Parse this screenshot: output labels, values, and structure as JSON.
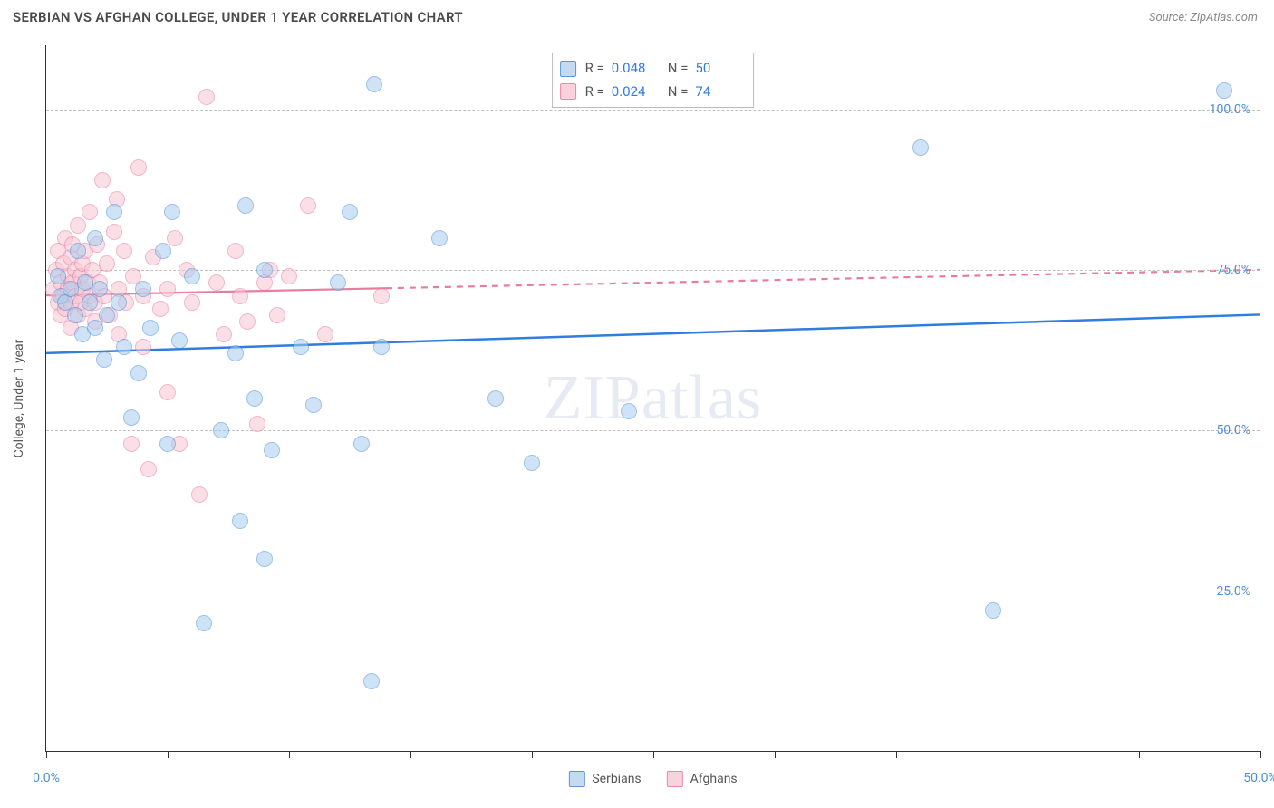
{
  "title": "SERBIAN VS AFGHAN COLLEGE, UNDER 1 YEAR CORRELATION CHART",
  "source_label": "Source: ZipAtlas.com",
  "watermark": "ZIPatlas",
  "y_axis_label": "College, Under 1 year",
  "chart": {
    "type": "scatter",
    "background_color": "#ffffff",
    "grid_color": "#c0c0c0",
    "axis_color": "#333333",
    "label_color_value": "#4d8fd6",
    "label_color_text": "#555555",
    "point_radius": 9,
    "point_opacity": 0.55,
    "xlim": [
      0,
      50
    ],
    "ylim": [
      0,
      110
    ],
    "x_ticks": [
      0,
      5,
      10,
      15,
      20,
      25,
      30,
      35,
      40,
      45,
      50
    ],
    "x_tick_labels": {
      "0": "0.0%",
      "50": "50.0%"
    },
    "y_gridlines": [
      25,
      50,
      75,
      100
    ],
    "y_tick_labels": {
      "25": "25.0%",
      "50": "50.0%",
      "75": "75.0%",
      "100": "100.0%"
    }
  },
  "series": {
    "serbians": {
      "label": "Serbians",
      "fill_color": "#a9cdef",
      "stroke_color": "#4d8fd6",
      "R_label": "R =",
      "R_value": "0.048",
      "N_label": "N =",
      "N_value": "50",
      "trend": {
        "y_at_x0": 62,
        "y_at_x50": 68,
        "color": "#2f7de0",
        "width": 2.5,
        "solid_to_x": 50
      },
      "points": [
        [
          0.5,
          74
        ],
        [
          0.6,
          71
        ],
        [
          0.8,
          70
        ],
        [
          1.0,
          72
        ],
        [
          1.2,
          68
        ],
        [
          1.3,
          78
        ],
        [
          1.5,
          65
        ],
        [
          1.6,
          73
        ],
        [
          1.8,
          70
        ],
        [
          2.0,
          66
        ],
        [
          2.0,
          80
        ],
        [
          2.2,
          72
        ],
        [
          2.4,
          61
        ],
        [
          2.5,
          68
        ],
        [
          2.8,
          84
        ],
        [
          3.0,
          70
        ],
        [
          3.2,
          63
        ],
        [
          3.5,
          52
        ],
        [
          3.8,
          59
        ],
        [
          4.0,
          72
        ],
        [
          4.3,
          66
        ],
        [
          4.8,
          78
        ],
        [
          5.0,
          48
        ],
        [
          5.2,
          84
        ],
        [
          5.5,
          64
        ],
        [
          6.0,
          74
        ],
        [
          6.5,
          20
        ],
        [
          7.2,
          50
        ],
        [
          7.8,
          62
        ],
        [
          8.0,
          36
        ],
        [
          8.2,
          85
        ],
        [
          8.6,
          55
        ],
        [
          9.0,
          30
        ],
        [
          9.0,
          75
        ],
        [
          9.3,
          47
        ],
        [
          10.5,
          63
        ],
        [
          11.0,
          54
        ],
        [
          12.0,
          73
        ],
        [
          12.5,
          84
        ],
        [
          13.0,
          48
        ],
        [
          13.4,
          11
        ],
        [
          13.5,
          104
        ],
        [
          13.8,
          63
        ],
        [
          16.2,
          80
        ],
        [
          18.5,
          55
        ],
        [
          20.0,
          45
        ],
        [
          24.0,
          53
        ],
        [
          36.0,
          94
        ],
        [
          39.0,
          22
        ],
        [
          48.5,
          103
        ]
      ]
    },
    "afghans": {
      "label": "Afghans",
      "fill_color": "#f7c6d4",
      "stroke_color": "#e87ca0",
      "R_label": "R =",
      "R_value": "0.024",
      "N_label": "N =",
      "N_value": "74",
      "trend": {
        "y_at_x0": 71,
        "y_at_x50": 75,
        "color": "#e87ca0",
        "width": 2.2,
        "solid_to_x": 14
      },
      "points": [
        [
          0.3,
          72
        ],
        [
          0.4,
          75
        ],
        [
          0.5,
          70
        ],
        [
          0.5,
          78
        ],
        [
          0.6,
          73
        ],
        [
          0.6,
          68
        ],
        [
          0.7,
          76
        ],
        [
          0.7,
          71
        ],
        [
          0.8,
          80
        ],
        [
          0.8,
          69
        ],
        [
          0.9,
          74
        ],
        [
          0.9,
          72
        ],
        [
          1.0,
          77
        ],
        [
          1.0,
          70
        ],
        [
          1.0,
          66
        ],
        [
          1.1,
          73
        ],
        [
          1.1,
          79
        ],
        [
          1.2,
          71
        ],
        [
          1.2,
          75
        ],
        [
          1.3,
          68
        ],
        [
          1.3,
          82
        ],
        [
          1.4,
          74
        ],
        [
          1.4,
          70
        ],
        [
          1.5,
          76
        ],
        [
          1.5,
          72
        ],
        [
          1.6,
          69
        ],
        [
          1.6,
          78
        ],
        [
          1.7,
          73
        ],
        [
          1.8,
          71
        ],
        [
          1.8,
          84
        ],
        [
          1.9,
          75
        ],
        [
          2.0,
          70
        ],
        [
          2.0,
          67
        ],
        [
          2.1,
          79
        ],
        [
          2.2,
          73
        ],
        [
          2.3,
          89
        ],
        [
          2.4,
          71
        ],
        [
          2.5,
          76
        ],
        [
          2.6,
          68
        ],
        [
          2.8,
          81
        ],
        [
          2.9,
          86
        ],
        [
          3.0,
          72
        ],
        [
          3.0,
          65
        ],
        [
          3.2,
          78
        ],
        [
          3.3,
          70
        ],
        [
          3.5,
          48
        ],
        [
          3.6,
          74
        ],
        [
          3.8,
          91
        ],
        [
          4.0,
          71
        ],
        [
          4.0,
          63
        ],
        [
          4.2,
          44
        ],
        [
          4.4,
          77
        ],
        [
          4.7,
          69
        ],
        [
          5.0,
          72
        ],
        [
          5.0,
          56
        ],
        [
          5.3,
          80
        ],
        [
          5.5,
          48
        ],
        [
          5.8,
          75
        ],
        [
          6.0,
          70
        ],
        [
          6.3,
          40
        ],
        [
          6.6,
          102
        ],
        [
          7.0,
          73
        ],
        [
          7.3,
          65
        ],
        [
          7.8,
          78
        ],
        [
          8.0,
          71
        ],
        [
          8.3,
          67
        ],
        [
          8.7,
          51
        ],
        [
          9.0,
          73
        ],
        [
          9.2,
          75
        ],
        [
          9.5,
          68
        ],
        [
          10.0,
          74
        ],
        [
          10.8,
          85
        ],
        [
          11.5,
          65
        ],
        [
          13.8,
          71
        ]
      ]
    }
  }
}
